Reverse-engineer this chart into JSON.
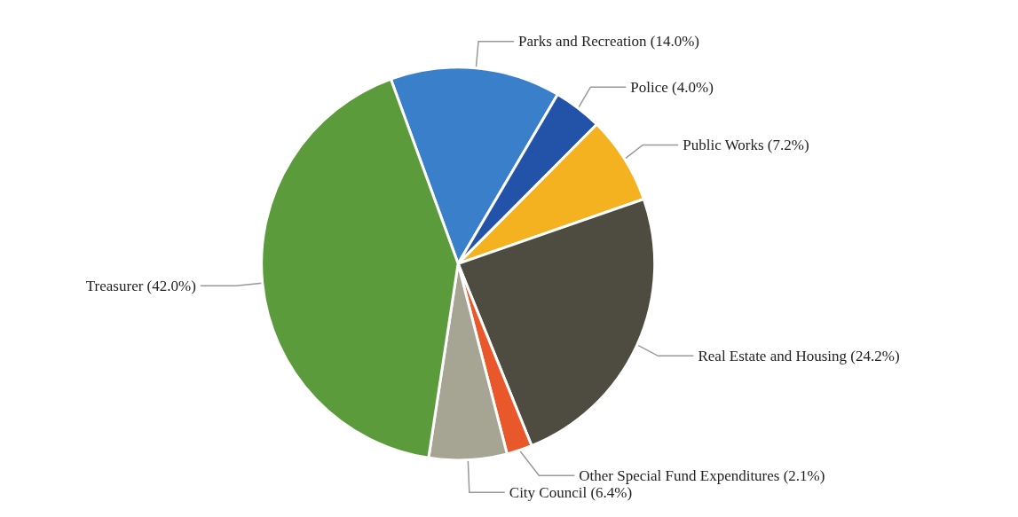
{
  "chart_data": {
    "type": "pie",
    "categories": [
      "Parks and Recreation (14.0%)",
      "Police (4.0%)",
      "Public Works (7.2%)",
      "Real Estate and Housing (24.2%)",
      "Other Special Fund Expenditures (2.1%)",
      "City Council (6.4%)",
      "Treasurer (42.0%)"
    ],
    "values": [
      14.0,
      4.0,
      7.2,
      24.2,
      2.1,
      6.4,
      42.0
    ],
    "colors": [
      "#3a7fc9",
      "#2353a8",
      "#f4b120",
      "#4e4b41",
      "#e8582a",
      "#a6a492",
      "#5b9b3b"
    ],
    "legend": false
  }
}
